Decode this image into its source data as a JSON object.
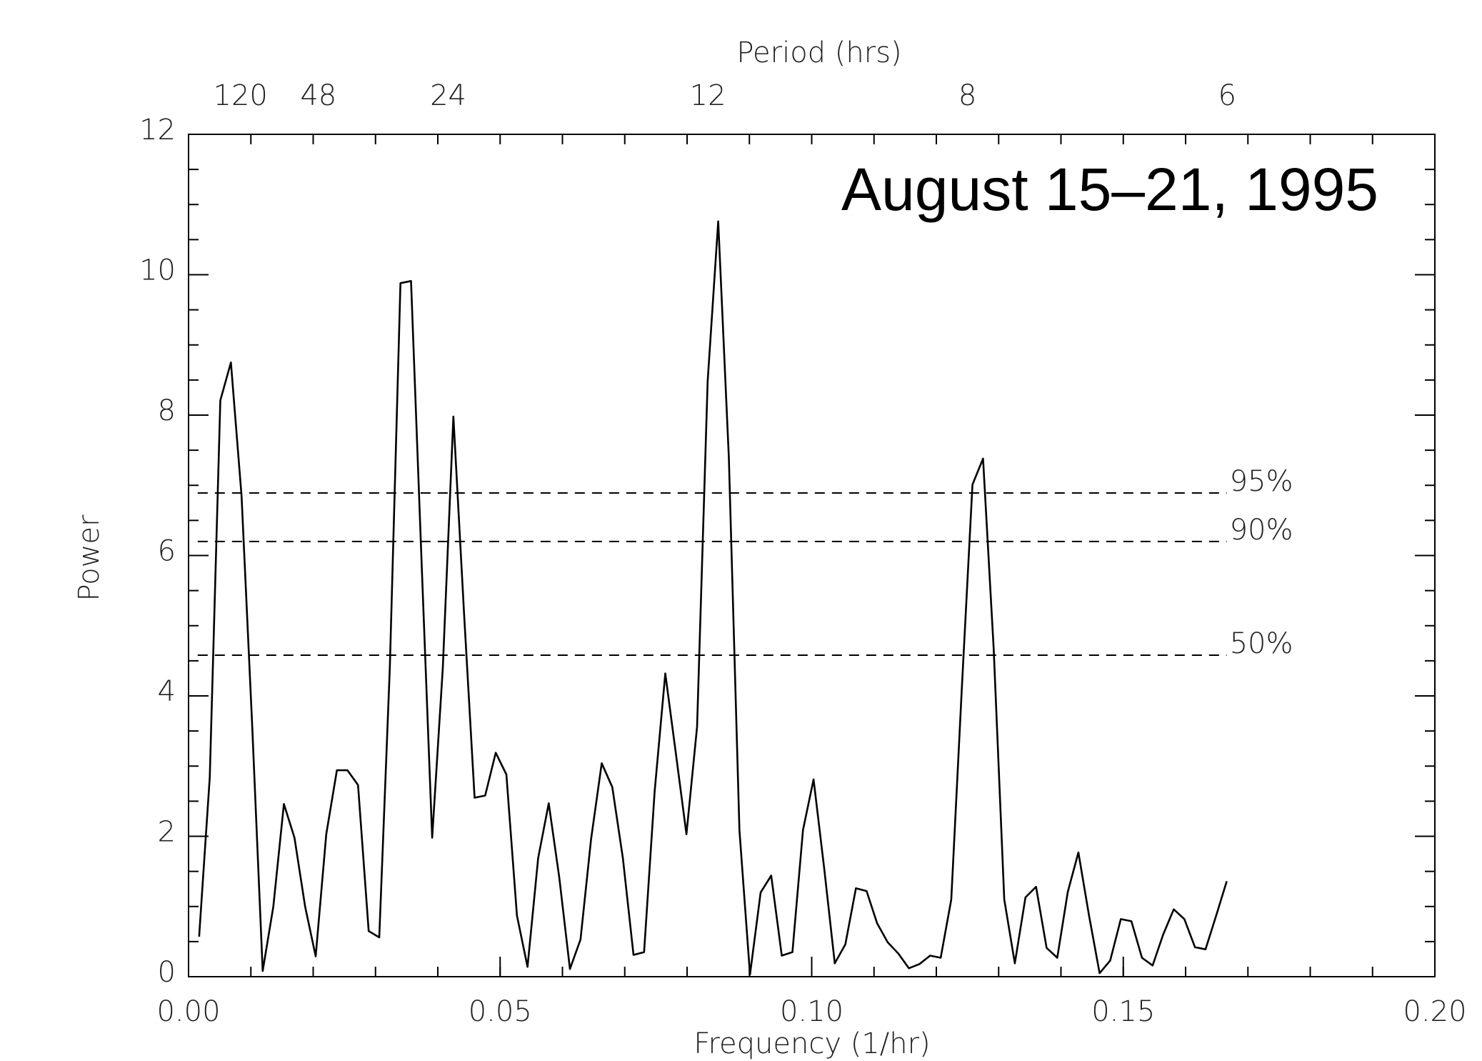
{
  "chart_data": {
    "type": "line",
    "annotation": "August 15–21, 1995",
    "x_label": "Frequency (1/hr)",
    "y_label": "Power",
    "x2_label": "Period (hrs)",
    "periods": [
      120,
      48,
      24,
      12,
      8,
      6
    ],
    "xlim": [
      0,
      0.2
    ],
    "xticks": [
      {
        "value": 0,
        "label": "0.00"
      },
      {
        "value": 0.05,
        "label": "0.05"
      },
      {
        "value": 0.1,
        "label": "0.10"
      },
      {
        "value": 0.15,
        "label": "0.15"
      },
      {
        "value": 0.2,
        "label": "0.20"
      }
    ],
    "x_minor_step": 0.01,
    "ylim": [
      0,
      12
    ],
    "yticks": [
      0,
      2,
      4,
      6,
      8,
      10,
      12
    ],
    "y_minor_step": 0.5,
    "thresholds": [
      {
        "label": "95%",
        "value": 6.89
      },
      {
        "label": "90%",
        "value": 6.2
      },
      {
        "label": "50%",
        "value": 4.58
      }
    ],
    "color": "#000000",
    "x": [
      0.0017,
      0.0034,
      0.0051,
      0.0068,
      0.0085,
      0.0102,
      0.0119,
      0.0136,
      0.0153,
      0.017,
      0.0187,
      0.0204,
      0.0221,
      0.0238,
      0.0255,
      0.0272,
      0.0289,
      0.0306,
      0.0323,
      0.034,
      0.0357,
      0.0374,
      0.0391,
      0.0408,
      0.0425,
      0.0442,
      0.0459,
      0.0476,
      0.0493,
      0.051,
      0.0527,
      0.0544,
      0.0561,
      0.0578,
      0.0595,
      0.0612,
      0.0629,
      0.0646,
      0.0663,
      0.068,
      0.0697,
      0.0714,
      0.0731,
      0.0748,
      0.0765,
      0.0782,
      0.0799,
      0.0816,
      0.0833,
      0.085,
      0.0867,
      0.0884,
      0.0901,
      0.0918,
      0.0935,
      0.0952,
      0.0969,
      0.0986,
      0.1003,
      0.102,
      0.1037,
      0.1054,
      0.1071,
      0.1088,
      0.1105,
      0.1122,
      0.1139,
      0.1156,
      0.1173,
      0.119,
      0.1207,
      0.1224,
      0.1241,
      0.1258,
      0.1275,
      0.1292,
      0.1309,
      0.1326,
      0.1343,
      0.136,
      0.1377,
      0.1394,
      0.1411,
      0.1428,
      0.1445,
      0.1462,
      0.1479,
      0.1496,
      0.1513,
      0.153,
      0.1547,
      0.1564,
      0.1581,
      0.1598,
      0.1615,
      0.1632,
      0.1649,
      0.1666
    ],
    "values": [
      0.57,
      2.84,
      8.21,
      8.75,
      6.85,
      3.6,
      0.08,
      1.0,
      2.46,
      1.98,
      1.0,
      0.29,
      2.03,
      2.94,
      2.94,
      2.73,
      0.65,
      0.56,
      4.4,
      9.88,
      9.91,
      5.9,
      1.98,
      4.4,
      7.98,
      5.2,
      2.55,
      2.58,
      3.19,
      2.88,
      0.87,
      0.14,
      1.69,
      2.47,
      1.41,
      0.11,
      0.53,
      1.96,
      3.04,
      2.7,
      1.69,
      0.31,
      0.35,
      2.64,
      4.32,
      3.18,
      2.03,
      3.56,
      8.48,
      10.76,
      7.39,
      2.09,
      0.03,
      1.2,
      1.44,
      0.3,
      0.35,
      2.09,
      2.81,
      1.55,
      0.19,
      0.46,
      1.26,
      1.22,
      0.76,
      0.49,
      0.33,
      0.12,
      0.18,
      0.3,
      0.27,
      1.1,
      4.13,
      7.01,
      7.38,
      4.67,
      1.1,
      0.19,
      1.13,
      1.28,
      0.41,
      0.27,
      1.21,
      1.77,
      0.87,
      0.05,
      0.23,
      0.82,
      0.79,
      0.27,
      0.16,
      0.6,
      0.96,
      0.82,
      0.42,
      0.39,
      0.87,
      1.36
    ]
  }
}
